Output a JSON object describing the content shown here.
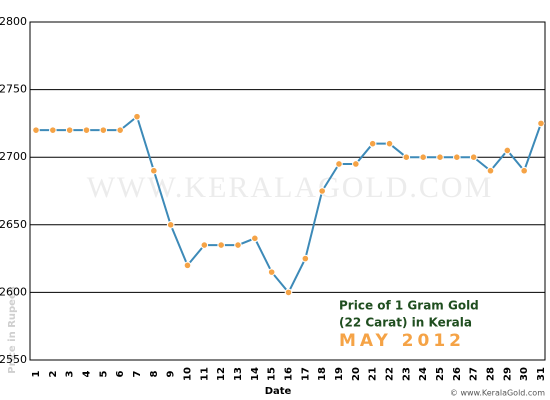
{
  "chart_data": {
    "type": "line",
    "categories": [
      "1",
      "2",
      "3",
      "4",
      "5",
      "6",
      "7",
      "8",
      "9",
      "10",
      "11",
      "12",
      "13",
      "14",
      "15",
      "16",
      "17",
      "18",
      "19",
      "20",
      "21",
      "22",
      "23",
      "24",
      "25",
      "26",
      "27",
      "28",
      "29",
      "30",
      "31"
    ],
    "series": [
      {
        "name": "Price of 1 Gram Gold (22 Carat) in Kerala",
        "color": "#3d8ab8",
        "marker_color": "#f5a346",
        "values": [
          2720,
          2720,
          2720,
          2720,
          2720,
          2720,
          2730,
          2690,
          2650,
          2620,
          2635,
          2635,
          2635,
          2640,
          2615,
          2600,
          2625,
          2675,
          2695,
          2695,
          2710,
          2710,
          2700,
          2700,
          2700,
          2700,
          2700,
          2690,
          2705,
          2690,
          2725
        ]
      }
    ],
    "ylim": [
      2550,
      2800
    ],
    "yticks": [
      2550,
      2600,
      2650,
      2700,
      2750,
      2800
    ],
    "grid": true,
    "x_label": "Date",
    "y_label": "Price in Rupees",
    "annotation_lines": [
      "Price of 1 Gram Gold",
      "(22 Carat) in Kerala"
    ],
    "period": "MAY 2012",
    "watermark": "WWW.KERALAGOLD.COM",
    "credit": "© www.KeralaGold.com"
  }
}
